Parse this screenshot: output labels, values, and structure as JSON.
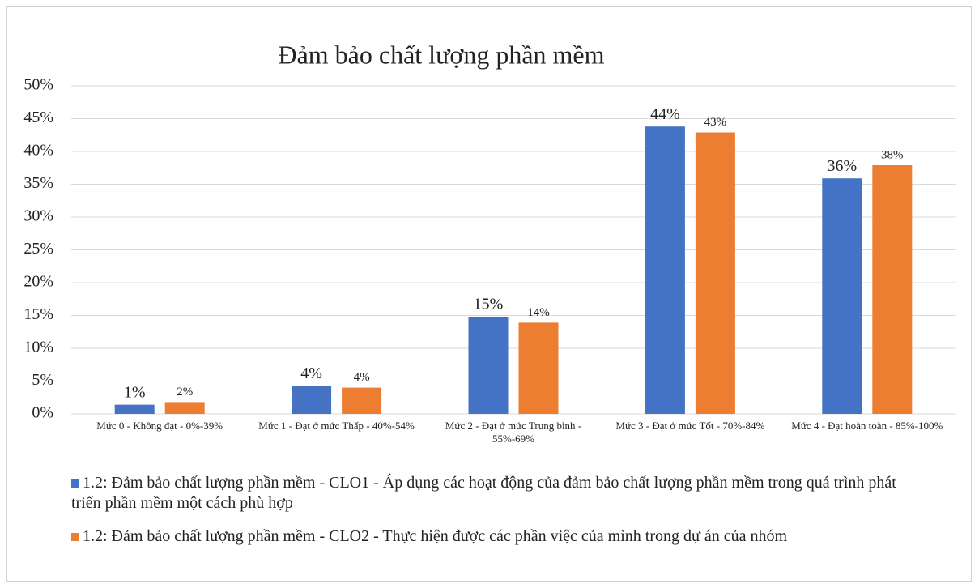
{
  "chart_data": {
    "type": "bar",
    "title": "Đảm bảo chất lượng phần mềm",
    "categories": [
      "Mức 0 - Không đạt - 0%-39%",
      "Mức 1 - Đạt ở mức Thấp - 40%-54%",
      "Mức 2 - Đạt ở mức Trung bình - 55%-69%",
      "Mức 3 - Đạt ở mức Tốt - 70%-84%",
      "Mức 4 - Đạt hoàn toàn - 85%-100%"
    ],
    "series": [
      {
        "name": "1.2: Đảm bảo chất lượng phần mềm - CLO1 - Áp dụng các hoạt động của đảm bảo chất lượng phần mềm trong quá trình phát triển phần mềm một cách phù hợp",
        "color": "#4472c4",
        "values": [
          1.4,
          4.3,
          14.8,
          43.8,
          35.9
        ],
        "value_labels": [
          "1%",
          "4%",
          "15%",
          "44%",
          "36%"
        ]
      },
      {
        "name": "1.2: Đảm bảo chất lượng phần mềm - CLO2 - Thực hiện được các phần việc của mình trong dự án của nhóm",
        "color": "#ed7d31",
        "values": [
          1.8,
          4.0,
          13.9,
          42.9,
          37.9
        ],
        "value_labels": [
          "2%",
          "4%",
          "14%",
          "43%",
          "38%"
        ]
      }
    ],
    "ylim": [
      0,
      50
    ],
    "yticks": [
      {
        "value": 0,
        "label": "0%"
      },
      {
        "value": 5,
        "label": "5%"
      },
      {
        "value": 10,
        "label": "10%"
      },
      {
        "value": 15,
        "label": "15%"
      },
      {
        "value": 20,
        "label": "20%"
      },
      {
        "value": 25,
        "label": "25%"
      },
      {
        "value": 30,
        "label": "30%"
      },
      {
        "value": 35,
        "label": "35%"
      },
      {
        "value": 40,
        "label": "40%"
      },
      {
        "value": 45,
        "label": "45%"
      },
      {
        "value": 50,
        "label": "50%"
      }
    ],
    "grid": true,
    "legend": "bottom"
  }
}
